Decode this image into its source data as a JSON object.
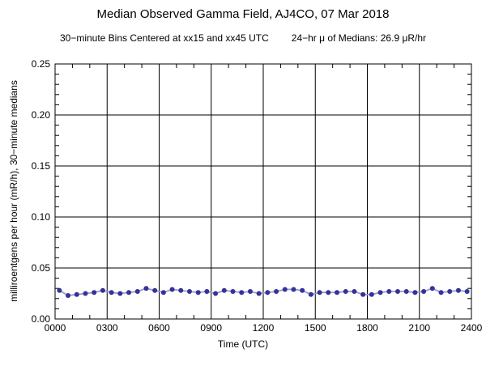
{
  "figure": {
    "title": "Median Observed Gamma Field, AJ4CO, 07 Mar 2018",
    "subtitle_left": "30−minute Bins Centered at xx15 and xx45 UTC",
    "subtitle_right": "24−hr μ of Medians: 26.9 μR/hr"
  },
  "chart_data": {
    "type": "line",
    "title": "Median Observed Gamma Field, AJ4CO, 07 Mar 2018",
    "subtitle": "30−minute Bins Centered at xx15 and xx45 UTC     24−hr μ of Medians: 26.9 μR/hr",
    "xlabel": "Time (UTC)",
    "ylabel": "milliroentgens per hour (mR/h), 30−minute medians",
    "xlim_minutes": [
      0,
      1440
    ],
    "ylim": [
      0,
      0.25
    ],
    "grid": true,
    "legend": "none",
    "x_major_minutes": [
      0,
      180,
      360,
      540,
      720,
      900,
      1080,
      1260,
      1440
    ],
    "x_tick_labels": [
      "0000",
      "0300",
      "0600",
      "0900",
      "1200",
      "1500",
      "1800",
      "2100",
      "2400"
    ],
    "x_minor_step_minutes": 60,
    "y_major": [
      0,
      0.05,
      0.1,
      0.15,
      0.2,
      0.25
    ],
    "y_tick_labels": [
      "0.00",
      "0.05",
      "0.10",
      "0.15",
      "0.20",
      "0.25"
    ],
    "y_minor_step": 0.01,
    "line_color": "#9999cc",
    "marker_color": "#333399",
    "mean_of_medians_uR_hr": 26.9,
    "bin_times_utc": [
      "0015",
      "0045",
      "0115",
      "0145",
      "0215",
      "0245",
      "0315",
      "0345",
      "0415",
      "0445",
      "0515",
      "0545",
      "0615",
      "0645",
      "0715",
      "0745",
      "0815",
      "0845",
      "0915",
      "0945",
      "1015",
      "1045",
      "1115",
      "1145",
      "1215",
      "1245",
      "1315",
      "1345",
      "1415",
      "1445",
      "1515",
      "1545",
      "1615",
      "1645",
      "1715",
      "1745",
      "1815",
      "1845",
      "1915",
      "1945",
      "2015",
      "2045",
      "2115",
      "2145",
      "2215",
      "2245",
      "2315",
      "2345"
    ],
    "x_minutes": [
      15,
      45,
      75,
      105,
      135,
      165,
      195,
      225,
      255,
      285,
      315,
      345,
      375,
      405,
      435,
      465,
      495,
      525,
      555,
      585,
      615,
      645,
      675,
      705,
      735,
      765,
      795,
      825,
      855,
      885,
      915,
      945,
      975,
      1005,
      1035,
      1065,
      1095,
      1125,
      1155,
      1185,
      1215,
      1245,
      1275,
      1305,
      1335,
      1365,
      1395,
      1425
    ],
    "values_mR_h": [
      0.028,
      0.023,
      0.024,
      0.025,
      0.026,
      0.028,
      0.026,
      0.025,
      0.026,
      0.027,
      0.03,
      0.028,
      0.026,
      0.029,
      0.028,
      0.027,
      0.026,
      0.027,
      0.025,
      0.028,
      0.027,
      0.026,
      0.027,
      0.025,
      0.026,
      0.027,
      0.029,
      0.029,
      0.028,
      0.024,
      0.026,
      0.026,
      0.026,
      0.027,
      0.027,
      0.024,
      0.024,
      0.026,
      0.027,
      0.027,
      0.027,
      0.026,
      0.027,
      0.03,
      0.026,
      0.027,
      0.028,
      0.027
    ]
  }
}
